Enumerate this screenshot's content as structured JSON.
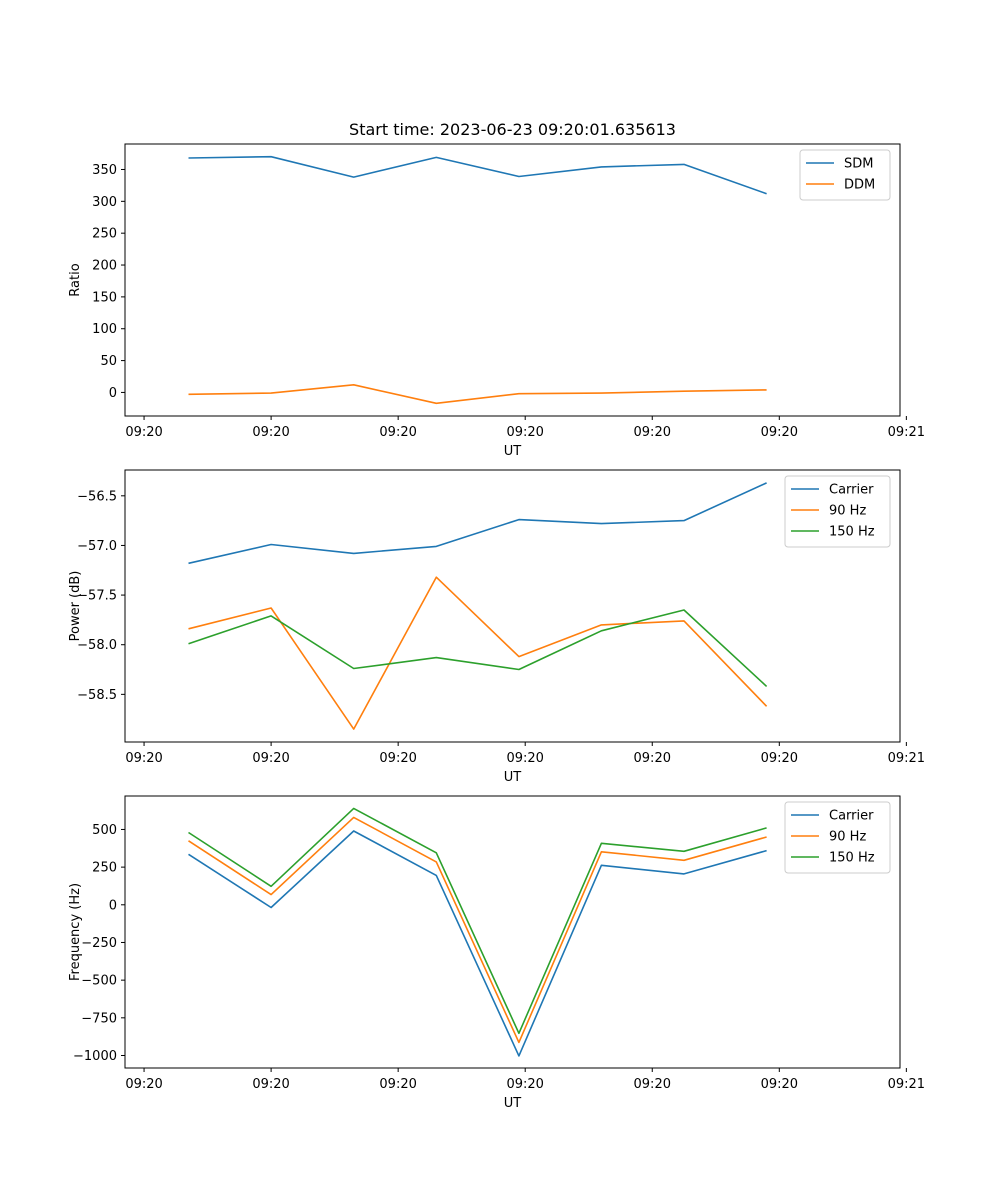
{
  "chart_data": [
    {
      "type": "line",
      "title": "Start time: 2023-06-23 09:20:01.635613",
      "xlabel": "UT",
      "ylabel": "Ratio",
      "x": [
        1.0,
        2.3,
        3.6,
        4.9,
        6.2,
        7.5,
        8.8,
        10.1
      ],
      "xlim": [
        0,
        12.2
      ],
      "xticks": [
        0.3,
        2.3,
        4.3,
        6.3,
        8.3,
        10.3,
        12.3
      ],
      "xtick_labels": [
        "09:20",
        "09:20",
        "09:20",
        "09:20",
        "09:20",
        "09:20",
        "09:21"
      ],
      "ylim": [
        -37,
        390
      ],
      "yticks": [
        0,
        50,
        100,
        150,
        200,
        250,
        300,
        350
      ],
      "ytick_labels": [
        "0",
        "50",
        "100",
        "150",
        "200",
        "250",
        "300",
        "350"
      ],
      "grid": false,
      "legend_position": "top-right",
      "series": [
        {
          "name": "SDM",
          "color": "#1f77b4",
          "values": [
            368,
            370,
            338,
            369,
            339,
            354,
            358,
            312
          ]
        },
        {
          "name": "DDM",
          "color": "#ff7f0e",
          "values": [
            -3,
            -1,
            12,
            -17,
            -2,
            -1,
            2,
            4
          ]
        }
      ]
    },
    {
      "type": "line",
      "title": "",
      "xlabel": "UT",
      "ylabel": "Power (dB)",
      "x": [
        1.0,
        2.3,
        3.6,
        4.9,
        6.2,
        7.5,
        8.8,
        10.1
      ],
      "xlim": [
        0,
        12.2
      ],
      "xticks": [
        0.3,
        2.3,
        4.3,
        6.3,
        8.3,
        10.3,
        12.3
      ],
      "xtick_labels": [
        "09:20",
        "09:20",
        "09:20",
        "09:20",
        "09:20",
        "09:20",
        "09:21"
      ],
      "ylim": [
        -58.98,
        -56.24
      ],
      "yticks": [
        -58.5,
        -58.0,
        -57.5,
        -57.0,
        -56.5
      ],
      "ytick_labels": [
        "−58.5",
        "−58.0",
        "−57.5",
        "−57.0",
        "−56.5"
      ],
      "grid": false,
      "legend_position": "top-right",
      "series": [
        {
          "name": "Carrier",
          "color": "#1f77b4",
          "values": [
            -57.18,
            -56.99,
            -57.08,
            -57.01,
            -56.74,
            -56.78,
            -56.75,
            -56.37
          ]
        },
        {
          "name": "90 Hz",
          "color": "#ff7f0e",
          "values": [
            -57.84,
            -57.63,
            -58.85,
            -57.32,
            -58.12,
            -57.8,
            -57.76,
            -58.62
          ]
        },
        {
          "name": "150 Hz",
          "color": "#2ca02c",
          "values": [
            -57.99,
            -57.71,
            -58.24,
            -58.13,
            -58.25,
            -57.86,
            -57.65,
            -58.42
          ]
        }
      ]
    },
    {
      "type": "line",
      "title": "",
      "xlabel": "UT",
      "ylabel": "Frequency (Hz)",
      "x": [
        1.0,
        2.3,
        3.6,
        4.9,
        6.2,
        7.5,
        8.8,
        10.1
      ],
      "xlim": [
        0,
        12.2
      ],
      "xticks": [
        0.3,
        2.3,
        4.3,
        6.3,
        8.3,
        10.3,
        12.3
      ],
      "xtick_labels": [
        "09:20",
        "09:20",
        "09:20",
        "09:20",
        "09:20",
        "09:20",
        "09:21"
      ],
      "ylim": [
        -1083,
        722
      ],
      "yticks": [
        -1000,
        -750,
        -500,
        -250,
        0,
        250,
        500
      ],
      "ytick_labels": [
        "−1000",
        "−750",
        "−500",
        "−250",
        "0",
        "250",
        "500"
      ],
      "grid": false,
      "legend_position": "top-right",
      "series": [
        {
          "name": "Carrier",
          "color": "#1f77b4",
          "values": [
            335,
            -18,
            490,
            195,
            -1003,
            262,
            205,
            360
          ]
        },
        {
          "name": "90 Hz",
          "color": "#ff7f0e",
          "values": [
            425,
            68,
            580,
            285,
            -913,
            352,
            295,
            450
          ]
        },
        {
          "name": "150 Hz",
          "color": "#2ca02c",
          "values": [
            480,
            123,
            640,
            345,
            -853,
            408,
            355,
            510
          ]
        }
      ]
    }
  ]
}
